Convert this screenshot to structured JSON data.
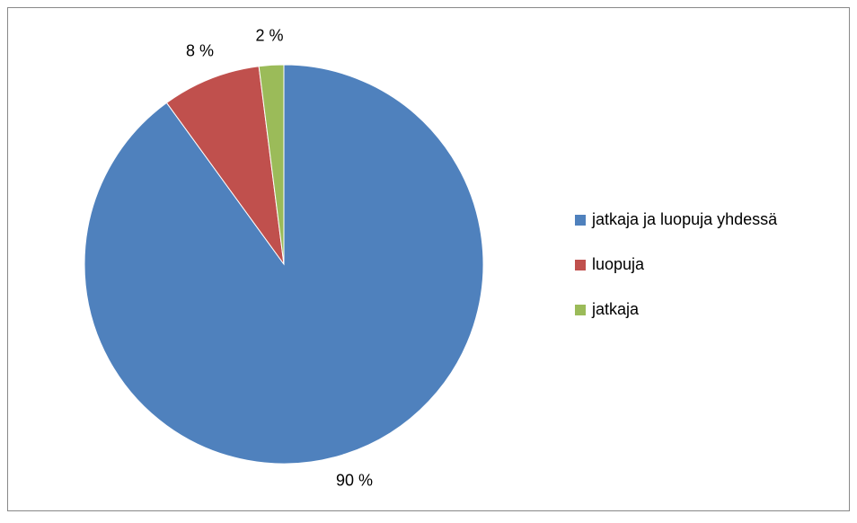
{
  "chart_data": {
    "type": "pie",
    "categories": [
      "jatkaja ja luopuja yhdessä",
      "luopuja",
      "jatkaja"
    ],
    "values": [
      90,
      8,
      2
    ],
    "value_labels": [
      "90 %",
      "8 %",
      "2 %"
    ],
    "colors": [
      "#4f81bd",
      "#c0504d",
      "#9bbb59"
    ],
    "legend": "right"
  }
}
